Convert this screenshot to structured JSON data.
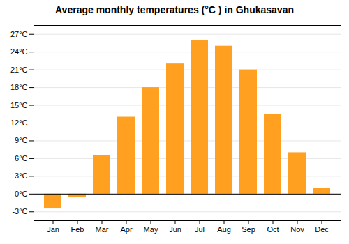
{
  "chart_data": {
    "type": "bar",
    "title": "Average monthly temperatures (°C ) in Ghukasavan",
    "categories": [
      "Jan",
      "Feb",
      "Mar",
      "Apr",
      "May",
      "Jun",
      "Jul",
      "Aug",
      "Sep",
      "Oct",
      "Nov",
      "Dec"
    ],
    "values": [
      -2.5,
      -0.5,
      6.5,
      13.0,
      18.0,
      22.0,
      26.0,
      25.0,
      21.0,
      13.5,
      7.0,
      1.0
    ],
    "color": "#FFA020",
    "ylim": [
      -4.5,
      28.5
    ],
    "yticks": [
      {
        "value": -3,
        "label": "-3°C"
      },
      {
        "value": 0,
        "label": "0°C"
      },
      {
        "value": 3,
        "label": "3°C"
      },
      {
        "value": 6,
        "label": "6°C"
      },
      {
        "value": 9,
        "label": "9°C"
      },
      {
        "value": 12,
        "label": "12°C"
      },
      {
        "value": 15,
        "label": "15°C"
      },
      {
        "value": 18,
        "label": "18°C"
      },
      {
        "value": 21,
        "label": "21°C"
      },
      {
        "value": 24,
        "label": "24°C"
      },
      {
        "value": 27,
        "label": "27°C"
      }
    ],
    "grid": true
  }
}
